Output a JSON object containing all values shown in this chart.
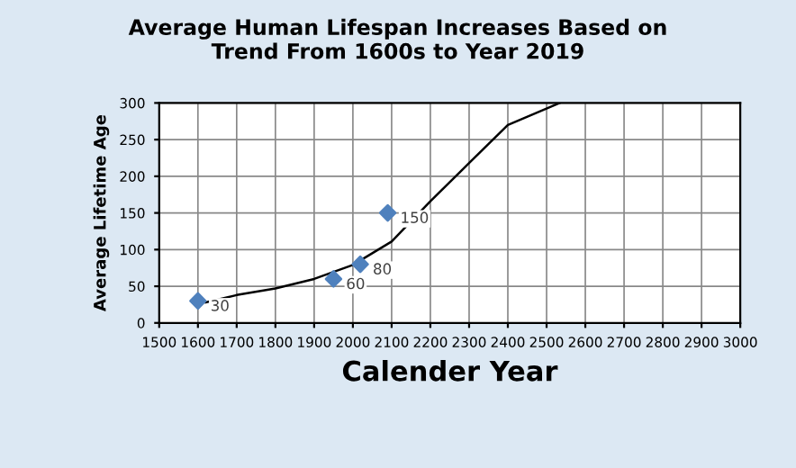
{
  "chart_data": {
    "type": "scatter",
    "title": "Average Human Lifespan Increases Based on\nTrend From 1600s to Year 2019",
    "xlabel": "Calender Year",
    "ylabel": "Average Lifetime Age",
    "series": [
      {
        "color": "#4f81bd",
        "x": [
          1600,
          1950,
          2019,
          2090
        ],
        "values": [
          30,
          60,
          80,
          150
        ],
        "marker": "diamond",
        "data_labels": true
      },
      {
        "type": "line",
        "color": "#000000",
        "x": [
          1620,
          1700,
          1800,
          1900,
          2000,
          2100,
          2200,
          2300,
          2400,
          2534
        ],
        "values": [
          28,
          38,
          47,
          60,
          79,
          111,
          166,
          218,
          270,
          300
        ],
        "marker": "none"
      }
    ],
    "xlim": [
      1500,
      3000
    ],
    "xticks": [
      1500,
      1600,
      1700,
      1800,
      1900,
      2000,
      2100,
      2200,
      2300,
      2400,
      2500,
      2600,
      2700,
      2800,
      2900,
      3000
    ],
    "ylim": [
      0,
      300
    ],
    "yticks": [
      0,
      50,
      100,
      150,
      200,
      250,
      300
    ],
    "grid": true,
    "legend": false
  }
}
